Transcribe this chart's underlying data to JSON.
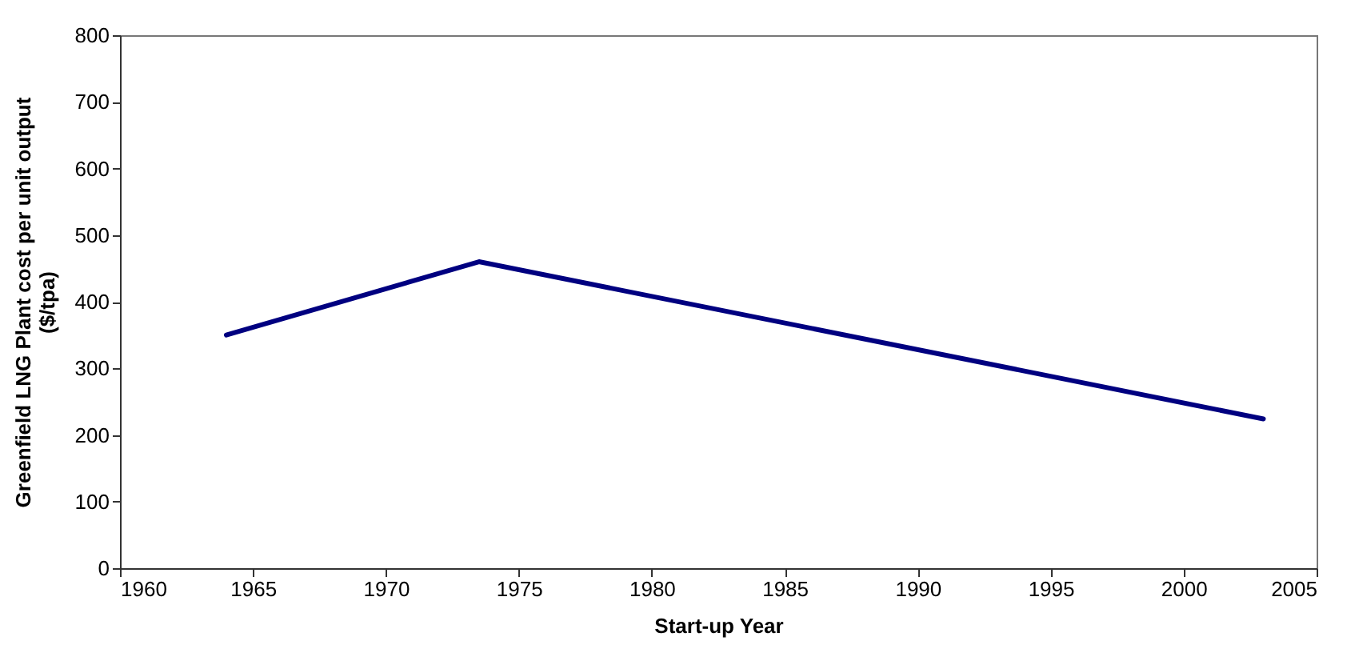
{
  "chart_data": {
    "type": "line",
    "xlabel": "Start-up Year",
    "ylabel": "Greenfield LNG Plant cost per unit output\n($/tpa)",
    "x": [
      1964,
      1973.5,
      2003
    ],
    "series": [
      {
        "color": "#000080",
        "values": [
          350,
          460,
          224
        ]
      }
    ],
    "xlim": [
      1960,
      2005
    ],
    "xticks": [
      1960,
      1965,
      1970,
      1975,
      1980,
      1985,
      1990,
      1995,
      2000,
      2005
    ],
    "ylim": [
      0,
      800
    ],
    "yticks": [
      0,
      100,
      200,
      300,
      400,
      500,
      600,
      700,
      800
    ],
    "grid": false,
    "legend": false,
    "marker": "none",
    "line_style": "solid"
  }
}
